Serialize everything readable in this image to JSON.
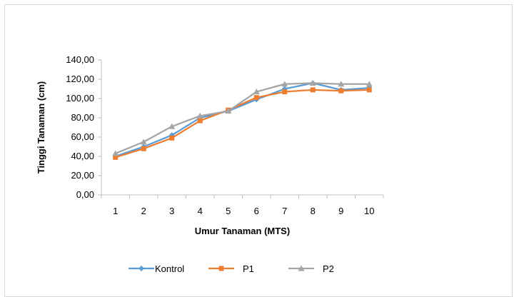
{
  "chart_data": {
    "type": "line",
    "title": "",
    "xlabel": "Umur Tanaman (MTS)",
    "ylabel": "Tinggi Tanaman (cm)",
    "categories": [
      "1",
      "2",
      "3",
      "4",
      "5",
      "6",
      "7",
      "8",
      "9",
      "10"
    ],
    "ylim": [
      0,
      140
    ],
    "y_ticks": [
      "0,00",
      "20,00",
      "40,00",
      "60,00",
      "80,00",
      "100,00",
      "120,00",
      "140,00"
    ],
    "grid": false,
    "legend_position": "bottom",
    "series": [
      {
        "name": "Kontrol",
        "color": "#5b9bd5",
        "marker": "diamond",
        "values": [
          40,
          50,
          62,
          80,
          87,
          99,
          110,
          116,
          109,
          111
        ]
      },
      {
        "name": "P1",
        "color": "#ed7d31",
        "marker": "square",
        "values": [
          39,
          48,
          59,
          77,
          88,
          101,
          107,
          109,
          108,
          109
        ]
      },
      {
        "name": "P2",
        "color": "#a5a5a5",
        "marker": "triangle",
        "values": [
          43,
          55,
          71,
          82,
          87,
          107,
          115,
          116,
          115,
          115
        ]
      }
    ]
  }
}
